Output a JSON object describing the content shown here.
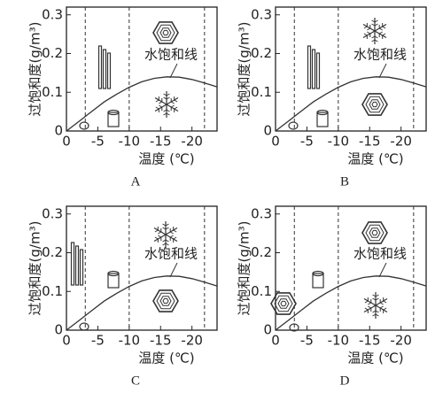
{
  "chart_data": [
    {
      "type": "line",
      "caption": "A",
      "xlabel": "温度 (℃)",
      "ylabel": "过饱和度(g/m³)",
      "annotation": "水饱和线",
      "x": [
        0,
        -2,
        -4,
        -6,
        -8,
        -10,
        -12,
        -14,
        -16,
        -18,
        -20,
        -22,
        -24
      ],
      "values": [
        0,
        0.025,
        0.05,
        0.075,
        0.095,
        0.113,
        0.127,
        0.136,
        0.14,
        0.139,
        0.133,
        0.124,
        0.114
      ],
      "xlim": [
        0,
        -24
      ],
      "ylim": [
        0,
        0.32
      ],
      "xticks": [
        0,
        -5,
        -10,
        -15,
        -20
      ],
      "yticks": [
        0,
        0.1,
        0.2,
        0.3
      ],
      "vlines": [
        -3,
        -10,
        -22
      ],
      "color": "#333333"
    },
    {
      "type": "line",
      "caption": "B",
      "xlabel": "温度 (℃)",
      "ylabel": "过饱和度(g/m³)",
      "annotation": "水饱和线",
      "x": [
        0,
        -2,
        -4,
        -6,
        -8,
        -10,
        -12,
        -14,
        -16,
        -18,
        -20,
        -22,
        -24
      ],
      "values": [
        0,
        0.025,
        0.05,
        0.075,
        0.095,
        0.113,
        0.127,
        0.136,
        0.14,
        0.139,
        0.133,
        0.124,
        0.114
      ],
      "xlim": [
        0,
        -24
      ],
      "ylim": [
        0,
        0.32
      ],
      "xticks": [
        0,
        -5,
        -10,
        -15,
        -20
      ],
      "yticks": [
        0,
        0.1,
        0.2,
        0.3
      ],
      "vlines": [
        -3,
        -10,
        -22
      ],
      "color": "#333333"
    },
    {
      "type": "line",
      "caption": "C",
      "xlabel": "温度 (℃)",
      "ylabel": "过饱和度(g/m³)",
      "annotation": "水饱和线",
      "x": [
        0,
        -2,
        -4,
        -6,
        -8,
        -10,
        -12,
        -14,
        -16,
        -18,
        -20,
        -22,
        -24
      ],
      "values": [
        0,
        0.025,
        0.05,
        0.075,
        0.095,
        0.113,
        0.127,
        0.136,
        0.14,
        0.139,
        0.133,
        0.124,
        0.114
      ],
      "xlim": [
        0,
        -24
      ],
      "ylim": [
        0,
        0.32
      ],
      "xticks": [
        0,
        -5,
        -10,
        -15,
        -20
      ],
      "yticks": [
        0,
        0.1,
        0.2,
        0.3
      ],
      "vlines": [
        -3,
        -10,
        -22
      ],
      "color": "#333333"
    },
    {
      "type": "line",
      "caption": "D",
      "xlabel": "温度 (℃)",
      "ylabel": "过饱和度(g/m³)",
      "annotation": "水饱和线",
      "x": [
        0,
        -2,
        -4,
        -6,
        -8,
        -10,
        -12,
        -14,
        -16,
        -18,
        -20,
        -22,
        -24
      ],
      "values": [
        0,
        0.025,
        0.05,
        0.075,
        0.095,
        0.113,
        0.127,
        0.136,
        0.14,
        0.139,
        0.133,
        0.124,
        0.114
      ],
      "xlim": [
        0,
        -24
      ],
      "ylim": [
        0,
        0.32
      ],
      "xticks": [
        0,
        -5,
        -10,
        -15,
        -20
      ],
      "yticks": [
        0,
        0.1,
        0.2,
        0.3
      ],
      "vlines": [
        -3,
        -10,
        -22
      ],
      "color": "#333333"
    }
  ]
}
